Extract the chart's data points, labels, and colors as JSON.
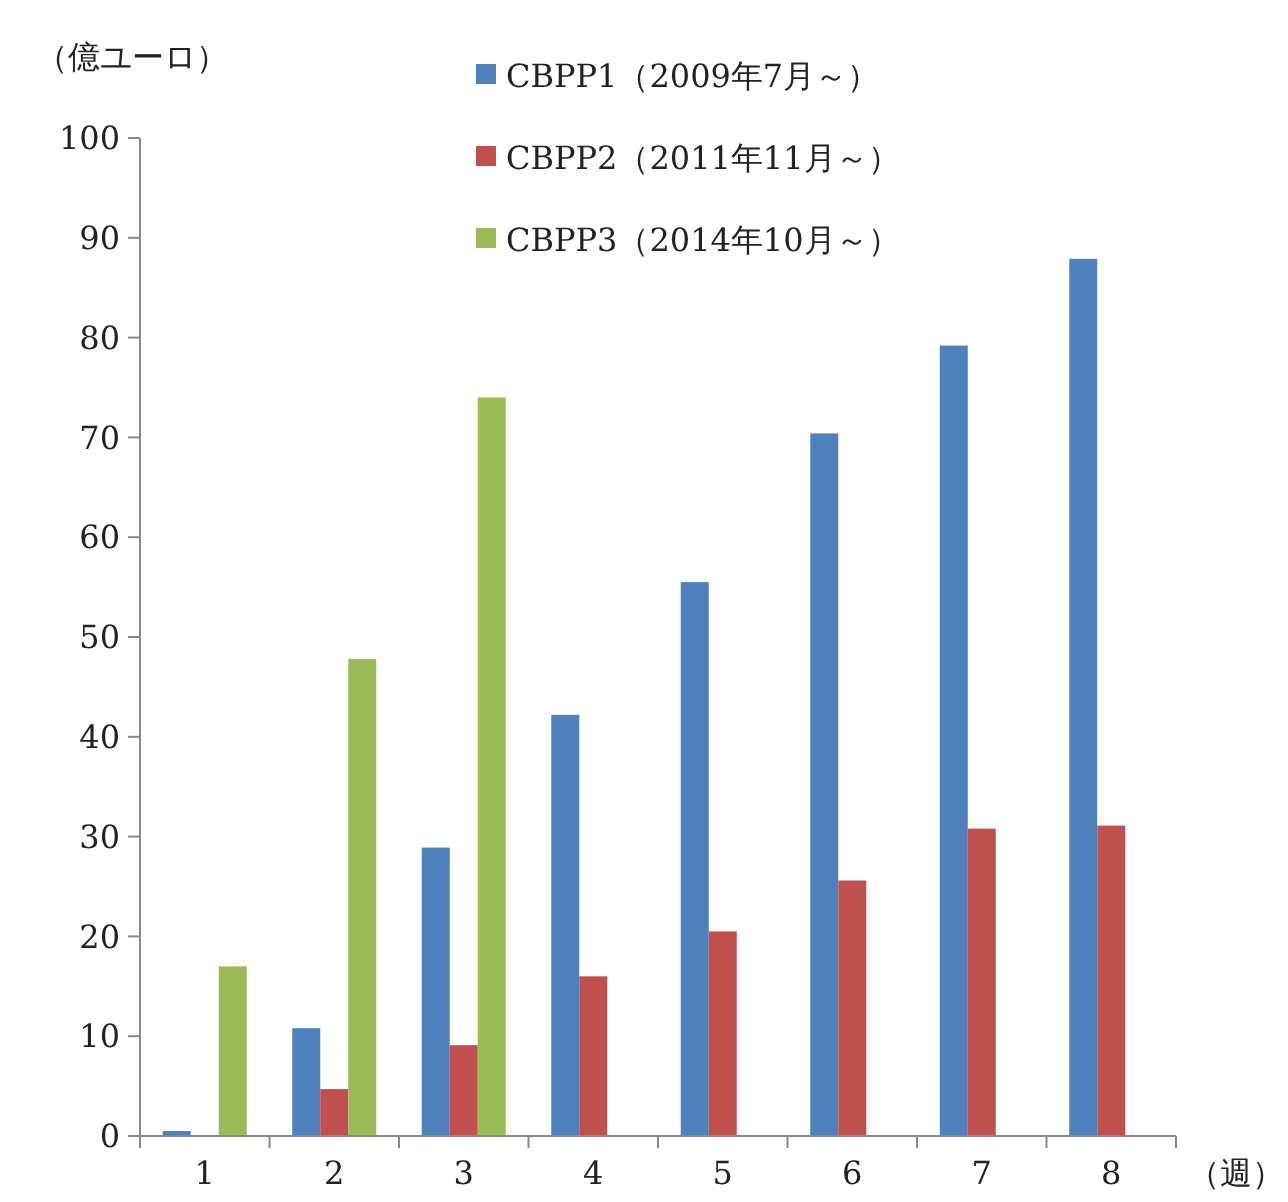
{
  "chart_data": {
    "type": "bar",
    "ylabel": "（億ユーロ）",
    "xlabel": "（週）",
    "categories": [
      "1",
      "2",
      "3",
      "4",
      "5",
      "6",
      "7",
      "8"
    ],
    "series": [
      {
        "name": "CBPP1（2009年7月～）",
        "color": "#4f81bd",
        "values": [
          0.5,
          10.8,
          28.9,
          42.2,
          55.5,
          70.4,
          79.2,
          87.9
        ]
      },
      {
        "name": "CBPP2（2011年11月～）",
        "color": "#c0504d",
        "values": [
          0.1,
          4.7,
          9.1,
          16.0,
          20.5,
          25.6,
          30.8,
          31.1
        ]
      },
      {
        "name": "CBPP3（2014年10月～）",
        "color": "#9bbb59",
        "values": [
          17.0,
          47.8,
          74.0,
          null,
          null,
          null,
          null,
          null
        ]
      }
    ],
    "ylim": [
      0,
      100
    ],
    "yticks": [
      0,
      10,
      20,
      30,
      40,
      50,
      60,
      70,
      80,
      90,
      100
    ],
    "grid": false,
    "legend": "top"
  }
}
